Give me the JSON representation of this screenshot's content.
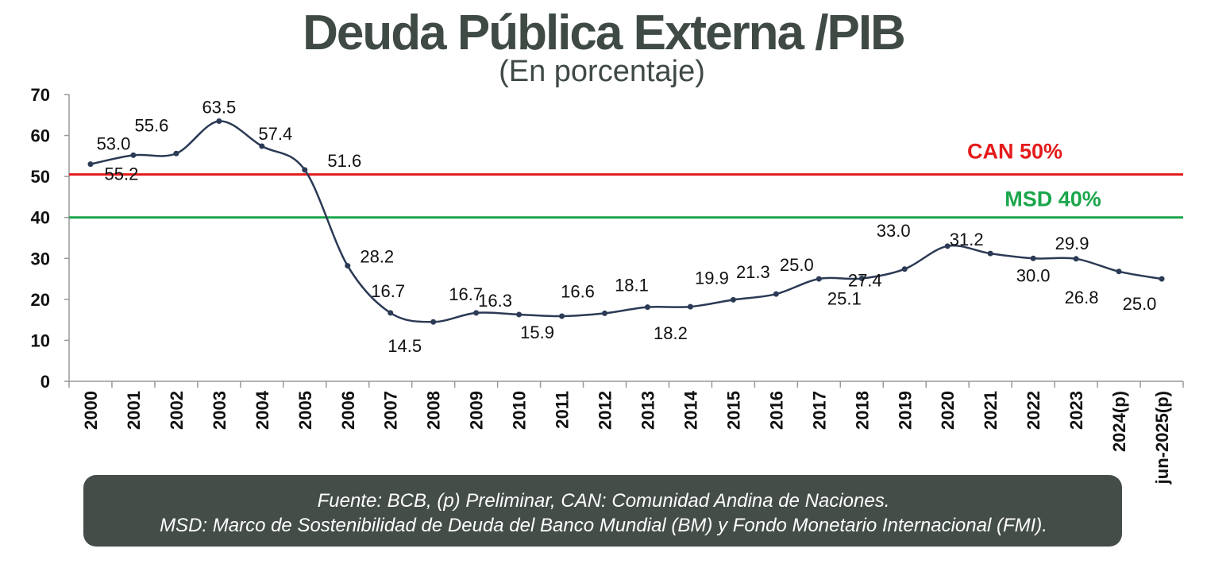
{
  "chart_data": {
    "type": "line",
    "title": "Deuda Pública Externa /PIB",
    "subtitle": "(En porcentaje)",
    "categories": [
      "2000",
      "2001",
      "2002",
      "2003",
      "2004",
      "2005",
      "2006",
      "2007",
      "2008",
      "2009",
      "2010",
      "2011",
      "2012",
      "2013",
      "2014",
      "2015",
      "2016",
      "2017",
      "2018",
      "2019",
      "2020",
      "2021",
      "2022",
      "2023",
      "2024(p)",
      "jun-2025(p)"
    ],
    "values": [
      53.0,
      55.2,
      55.6,
      63.5,
      57.4,
      51.6,
      28.2,
      16.7,
      14.5,
      16.7,
      16.3,
      15.9,
      16.6,
      18.1,
      18.2,
      19.9,
      21.3,
      25.0,
      25.1,
      27.4,
      33.0,
      31.2,
      30.0,
      29.9,
      26.8,
      25.0
    ],
    "value_labels": [
      "53.0",
      "55.2",
      "55.6",
      "63.5",
      "57.4",
      "51.6",
      "28.2",
      "16.7",
      "14.5",
      "16.7",
      "16.3",
      "15.9",
      "16.6",
      "18.1",
      "18.2",
      "19.9",
      "21.3",
      "25.0",
      "25.1",
      "27.4",
      "33.0",
      "31.2",
      "30.0",
      "29.9",
      "26.8",
      "25.0"
    ],
    "yticks": [
      "0",
      "10",
      "20",
      "30",
      "40",
      "50",
      "60",
      "70"
    ],
    "ylim": [
      0,
      70
    ],
    "series_color": "#2b3a55",
    "reference_lines": [
      {
        "label": "CAN 50%",
        "value": 50.5,
        "color": "#e41b1b"
      },
      {
        "label": "MSD 40%",
        "value": 40,
        "color": "#1aa64b"
      }
    ],
    "grid": false,
    "legend": "none"
  },
  "footnote": {
    "line1": "Fuente: BCB, (p) Preliminar, CAN: Comunidad Andina de Naciones.",
    "line2": "MSD: Marco de Sostenibilidad de Deuda del Banco Mundial (BM) y Fondo Monetario Internacional (FMI).",
    "background": "#444d48"
  }
}
